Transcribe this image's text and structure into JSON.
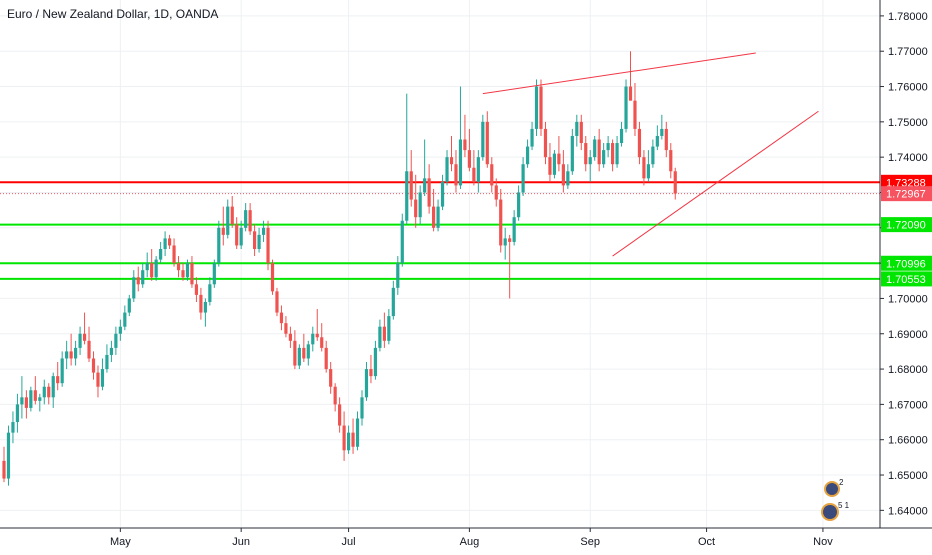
{
  "chart_data": {
    "type": "candlestick",
    "title": "Euro / New Zealand Dollar, 1D, OANDA",
    "ylim": [
      1.635,
      1.7845
    ],
    "y_ticks": [
      "1.78000",
      "1.77000",
      "1.76000",
      "1.75000",
      "1.74000",
      "1.73000",
      "1.72000",
      "1.71000",
      "1.70000",
      "1.69000",
      "1.68000",
      "1.67000",
      "1.66000",
      "1.65000",
      "1.64000"
    ],
    "x_labels": [
      {
        "label": "May",
        "bar": 26
      },
      {
        "label": "Jun",
        "bar": 53
      },
      {
        "label": "Jul",
        "bar": 77
      },
      {
        "label": "Aug",
        "bar": 104
      },
      {
        "label": "Sep",
        "bar": 131
      },
      {
        "label": "Oct",
        "bar": 157
      },
      {
        "label": "Nov",
        "bar": 183
      }
    ],
    "grid": true,
    "colors": {
      "up": "#26a69a",
      "down": "#ef5350",
      "resistance": "#ff0000",
      "support": "#00e600",
      "trendline": "#f23645",
      "grid": "#eef0f3",
      "axis_text": "#131722"
    },
    "horizontal_levels": [
      {
        "label": "1.73288",
        "value": 1.73288,
        "color": "#ff0000"
      },
      {
        "label": "1.72967",
        "value": 1.72967,
        "color": "#f7525f"
      },
      {
        "label": "1.72090",
        "value": 1.7209,
        "color": "#00e600"
      },
      {
        "label": "1.70996",
        "value": 1.70996,
        "color": "#00e600"
      },
      {
        "label": "1.70553",
        "value": 1.70553,
        "color": "#00e600"
      }
    ],
    "trendlines": [
      {
        "from": {
          "bar": 107,
          "value": 1.758
        },
        "to": {
          "bar": 168,
          "value": 1.7695
        }
      },
      {
        "from": {
          "bar": 136,
          "value": 1.712
        },
        "to": {
          "bar": 182,
          "value": 1.753
        }
      }
    ],
    "ohlc": [
      [
        1.654,
        1.658,
        1.648,
        1.649
      ],
      [
        1.649,
        1.664,
        1.647,
        1.662
      ],
      [
        1.662,
        1.668,
        1.659,
        1.665
      ],
      [
        1.665,
        1.673,
        1.662,
        1.67
      ],
      [
        1.67,
        1.678,
        1.666,
        1.672
      ],
      [
        1.672,
        1.674,
        1.666,
        1.669
      ],
      [
        1.669,
        1.675,
        1.668,
        1.674
      ],
      [
        1.674,
        1.678,
        1.67,
        1.671
      ],
      [
        1.671,
        1.673,
        1.668,
        1.672
      ],
      [
        1.672,
        1.677,
        1.67,
        1.675
      ],
      [
        1.675,
        1.676,
        1.67,
        1.672
      ],
      [
        1.672,
        1.679,
        1.669,
        1.678
      ],
      [
        1.678,
        1.682,
        1.674,
        1.676
      ],
      [
        1.676,
        1.685,
        1.675,
        1.683
      ],
      [
        1.683,
        1.688,
        1.68,
        1.685
      ],
      [
        1.685,
        1.69,
        1.681,
        1.683
      ],
      [
        1.683,
        1.688,
        1.681,
        1.686
      ],
      [
        1.686,
        1.692,
        1.684,
        1.69
      ],
      [
        1.69,
        1.696,
        1.687,
        1.688
      ],
      [
        1.688,
        1.692,
        1.682,
        1.683
      ],
      [
        1.683,
        1.685,
        1.677,
        1.679
      ],
      [
        1.679,
        1.681,
        1.672,
        1.675
      ],
      [
        1.675,
        1.683,
        1.674,
        1.68
      ],
      [
        1.68,
        1.687,
        1.679,
        1.684
      ],
      [
        1.684,
        1.688,
        1.682,
        1.686
      ],
      [
        1.686,
        1.692,
        1.684,
        1.69
      ],
      [
        1.69,
        1.694,
        1.688,
        1.692
      ],
      [
        1.692,
        1.698,
        1.691,
        1.696
      ],
      [
        1.696,
        1.701,
        1.695,
        1.7
      ],
      [
        1.7,
        1.708,
        1.699,
        1.706
      ],
      [
        1.706,
        1.709,
        1.702,
        1.704
      ],
      [
        1.704,
        1.71,
        1.703,
        1.708
      ],
      [
        1.708,
        1.713,
        1.706,
        1.71
      ],
      [
        1.71,
        1.714,
        1.705,
        1.706
      ],
      [
        1.706,
        1.712,
        1.705,
        1.711
      ],
      [
        1.711,
        1.716,
        1.71,
        1.714
      ],
      [
        1.714,
        1.719,
        1.712,
        1.717
      ],
      [
        1.717,
        1.718,
        1.714,
        1.715
      ],
      [
        1.715,
        1.717,
        1.709,
        1.71
      ],
      [
        1.71,
        1.712,
        1.706,
        1.708
      ],
      [
        1.708,
        1.71,
        1.705,
        1.706
      ],
      [
        1.706,
        1.711,
        1.705,
        1.71
      ],
      [
        1.71,
        1.712,
        1.703,
        1.704
      ],
      [
        1.704,
        1.706,
        1.699,
        1.701
      ],
      [
        1.701,
        1.703,
        1.694,
        1.696
      ],
      [
        1.696,
        1.7,
        1.692,
        1.699
      ],
      [
        1.699,
        1.706,
        1.698,
        1.704
      ],
      [
        1.704,
        1.711,
        1.703,
        1.71
      ],
      [
        1.71,
        1.722,
        1.709,
        1.72
      ],
      [
        1.72,
        1.726,
        1.715,
        1.718
      ],
      [
        1.718,
        1.728,
        1.717,
        1.726
      ],
      [
        1.726,
        1.729,
        1.72,
        1.721
      ],
      [
        1.721,
        1.723,
        1.714,
        1.715
      ],
      [
        1.715,
        1.722,
        1.714,
        1.72
      ],
      [
        1.72,
        1.727,
        1.719,
        1.725
      ],
      [
        1.725,
        1.727,
        1.718,
        1.719
      ],
      [
        1.719,
        1.721,
        1.712,
        1.714
      ],
      [
        1.714,
        1.72,
        1.713,
        1.718
      ],
      [
        1.718,
        1.722,
        1.716,
        1.72
      ],
      [
        1.72,
        1.722,
        1.708,
        1.71
      ],
      [
        1.71,
        1.711,
        1.701,
        1.702
      ],
      [
        1.702,
        1.703,
        1.695,
        1.696
      ],
      [
        1.696,
        1.698,
        1.691,
        1.693
      ],
      [
        1.693,
        1.695,
        1.689,
        1.69
      ],
      [
        1.69,
        1.692,
        1.686,
        1.688
      ],
      [
        1.688,
        1.691,
        1.68,
        1.681
      ],
      [
        1.681,
        1.687,
        1.68,
        1.686
      ],
      [
        1.686,
        1.69,
        1.682,
        1.683
      ],
      [
        1.683,
        1.688,
        1.681,
        1.687
      ],
      [
        1.687,
        1.692,
        1.685,
        1.69
      ],
      [
        1.69,
        1.697,
        1.688,
        1.689
      ],
      [
        1.689,
        1.693,
        1.685,
        1.686
      ],
      [
        1.686,
        1.688,
        1.679,
        1.68
      ],
      [
        1.68,
        1.682,
        1.673,
        1.675
      ],
      [
        1.675,
        1.676,
        1.668,
        1.67
      ],
      [
        1.67,
        1.672,
        1.662,
        1.664
      ],
      [
        1.664,
        1.668,
        1.654,
        1.657
      ],
      [
        1.657,
        1.664,
        1.656,
        1.662
      ],
      [
        1.662,
        1.666,
        1.656,
        1.658
      ],
      [
        1.658,
        1.668,
        1.657,
        1.666
      ],
      [
        1.666,
        1.674,
        1.664,
        1.672
      ],
      [
        1.672,
        1.682,
        1.671,
        1.68
      ],
      [
        1.68,
        1.684,
        1.676,
        1.678
      ],
      [
        1.678,
        1.688,
        1.677,
        1.686
      ],
      [
        1.686,
        1.694,
        1.685,
        1.692
      ],
      [
        1.692,
        1.696,
        1.686,
        1.688
      ],
      [
        1.688,
        1.697,
        1.687,
        1.695
      ],
      [
        1.695,
        1.705,
        1.694,
        1.703
      ],
      [
        1.703,
        1.712,
        1.701,
        1.71
      ],
      [
        1.71,
        1.724,
        1.709,
        1.722
      ],
      [
        1.722,
        1.758,
        1.721,
        1.736
      ],
      [
        1.736,
        1.742,
        1.726,
        1.728
      ],
      [
        1.728,
        1.735,
        1.72,
        1.723
      ],
      [
        1.723,
        1.732,
        1.721,
        1.73
      ],
      [
        1.73,
        1.745,
        1.729,
        1.734
      ],
      [
        1.734,
        1.738,
        1.724,
        1.726
      ],
      [
        1.726,
        1.731,
        1.719,
        1.72
      ],
      [
        1.72,
        1.728,
        1.719,
        1.726
      ],
      [
        1.726,
        1.735,
        1.725,
        1.733
      ],
      [
        1.733,
        1.742,
        1.732,
        1.74
      ],
      [
        1.74,
        1.746,
        1.736,
        1.738
      ],
      [
        1.738,
        1.742,
        1.73,
        1.732
      ],
      [
        1.732,
        1.76,
        1.731,
        1.745
      ],
      [
        1.745,
        1.752,
        1.74,
        1.742
      ],
      [
        1.742,
        1.748,
        1.736,
        1.737
      ],
      [
        1.737,
        1.742,
        1.732,
        1.733
      ],
      [
        1.733,
        1.742,
        1.73,
        1.74
      ],
      [
        1.74,
        1.752,
        1.739,
        1.75
      ],
      [
        1.75,
        1.753,
        1.737,
        1.738
      ],
      [
        1.738,
        1.74,
        1.73,
        1.732
      ],
      [
        1.732,
        1.734,
        1.726,
        1.728
      ],
      [
        1.728,
        1.731,
        1.713,
        1.715
      ],
      [
        1.715,
        1.72,
        1.711,
        1.717
      ],
      [
        1.717,
        1.718,
        1.7,
        1.716
      ],
      [
        1.716,
        1.725,
        1.715,
        1.723
      ],
      [
        1.723,
        1.732,
        1.722,
        1.73
      ],
      [
        1.73,
        1.74,
        1.729,
        1.738
      ],
      [
        1.738,
        1.745,
        1.737,
        1.743
      ],
      [
        1.743,
        1.75,
        1.742,
        1.748
      ],
      [
        1.748,
        1.762,
        1.746,
        1.76
      ],
      [
        1.76,
        1.762,
        1.746,
        1.748
      ],
      [
        1.748,
        1.75,
        1.738,
        1.74
      ],
      [
        1.74,
        1.744,
        1.733,
        1.735
      ],
      [
        1.735,
        1.742,
        1.734,
        1.741
      ],
      [
        1.741,
        1.746,
        1.736,
        1.738
      ],
      [
        1.738,
        1.742,
        1.73,
        1.732
      ],
      [
        1.732,
        1.738,
        1.731,
        1.736
      ],
      [
        1.736,
        1.748,
        1.735,
        1.746
      ],
      [
        1.746,
        1.752,
        1.743,
        1.75
      ],
      [
        1.75,
        1.752,
        1.742,
        1.744
      ],
      [
        1.744,
        1.746,
        1.736,
        1.738
      ],
      [
        1.738,
        1.742,
        1.733,
        1.74
      ],
      [
        1.74,
        1.746,
        1.739,
        1.745
      ],
      [
        1.745,
        1.748,
        1.736,
        1.738
      ],
      [
        1.738,
        1.744,
        1.737,
        1.742
      ],
      [
        1.742,
        1.746,
        1.74,
        1.744
      ],
      [
        1.744,
        1.745,
        1.736,
        1.738
      ],
      [
        1.738,
        1.746,
        1.737,
        1.744
      ],
      [
        1.744,
        1.75,
        1.743,
        1.748
      ],
      [
        1.748,
        1.762,
        1.747,
        1.76
      ],
      [
        1.76,
        1.77,
        1.756,
        1.756
      ],
      [
        1.756,
        1.761,
        1.746,
        1.748
      ],
      [
        1.748,
        1.75,
        1.738,
        1.74
      ],
      [
        1.74,
        1.742,
        1.732,
        1.734
      ],
      [
        1.734,
        1.742,
        1.733,
        1.738
      ],
      [
        1.738,
        1.745,
        1.737,
        1.743
      ],
      [
        1.743,
        1.749,
        1.742,
        1.746
      ],
      [
        1.746,
        1.752,
        1.745,
        1.748
      ],
      [
        1.748,
        1.75,
        1.74,
        1.742
      ],
      [
        1.742,
        1.744,
        1.734,
        1.736
      ],
      [
        1.736,
        1.737,
        1.728,
        1.7297
      ]
    ]
  },
  "overlay": {
    "idea_icons": [
      {
        "icon": "publisher-avatar-icon",
        "count": "2"
      },
      {
        "icon": "publisher-avatar-group-icon",
        "count": "5 1"
      }
    ]
  }
}
